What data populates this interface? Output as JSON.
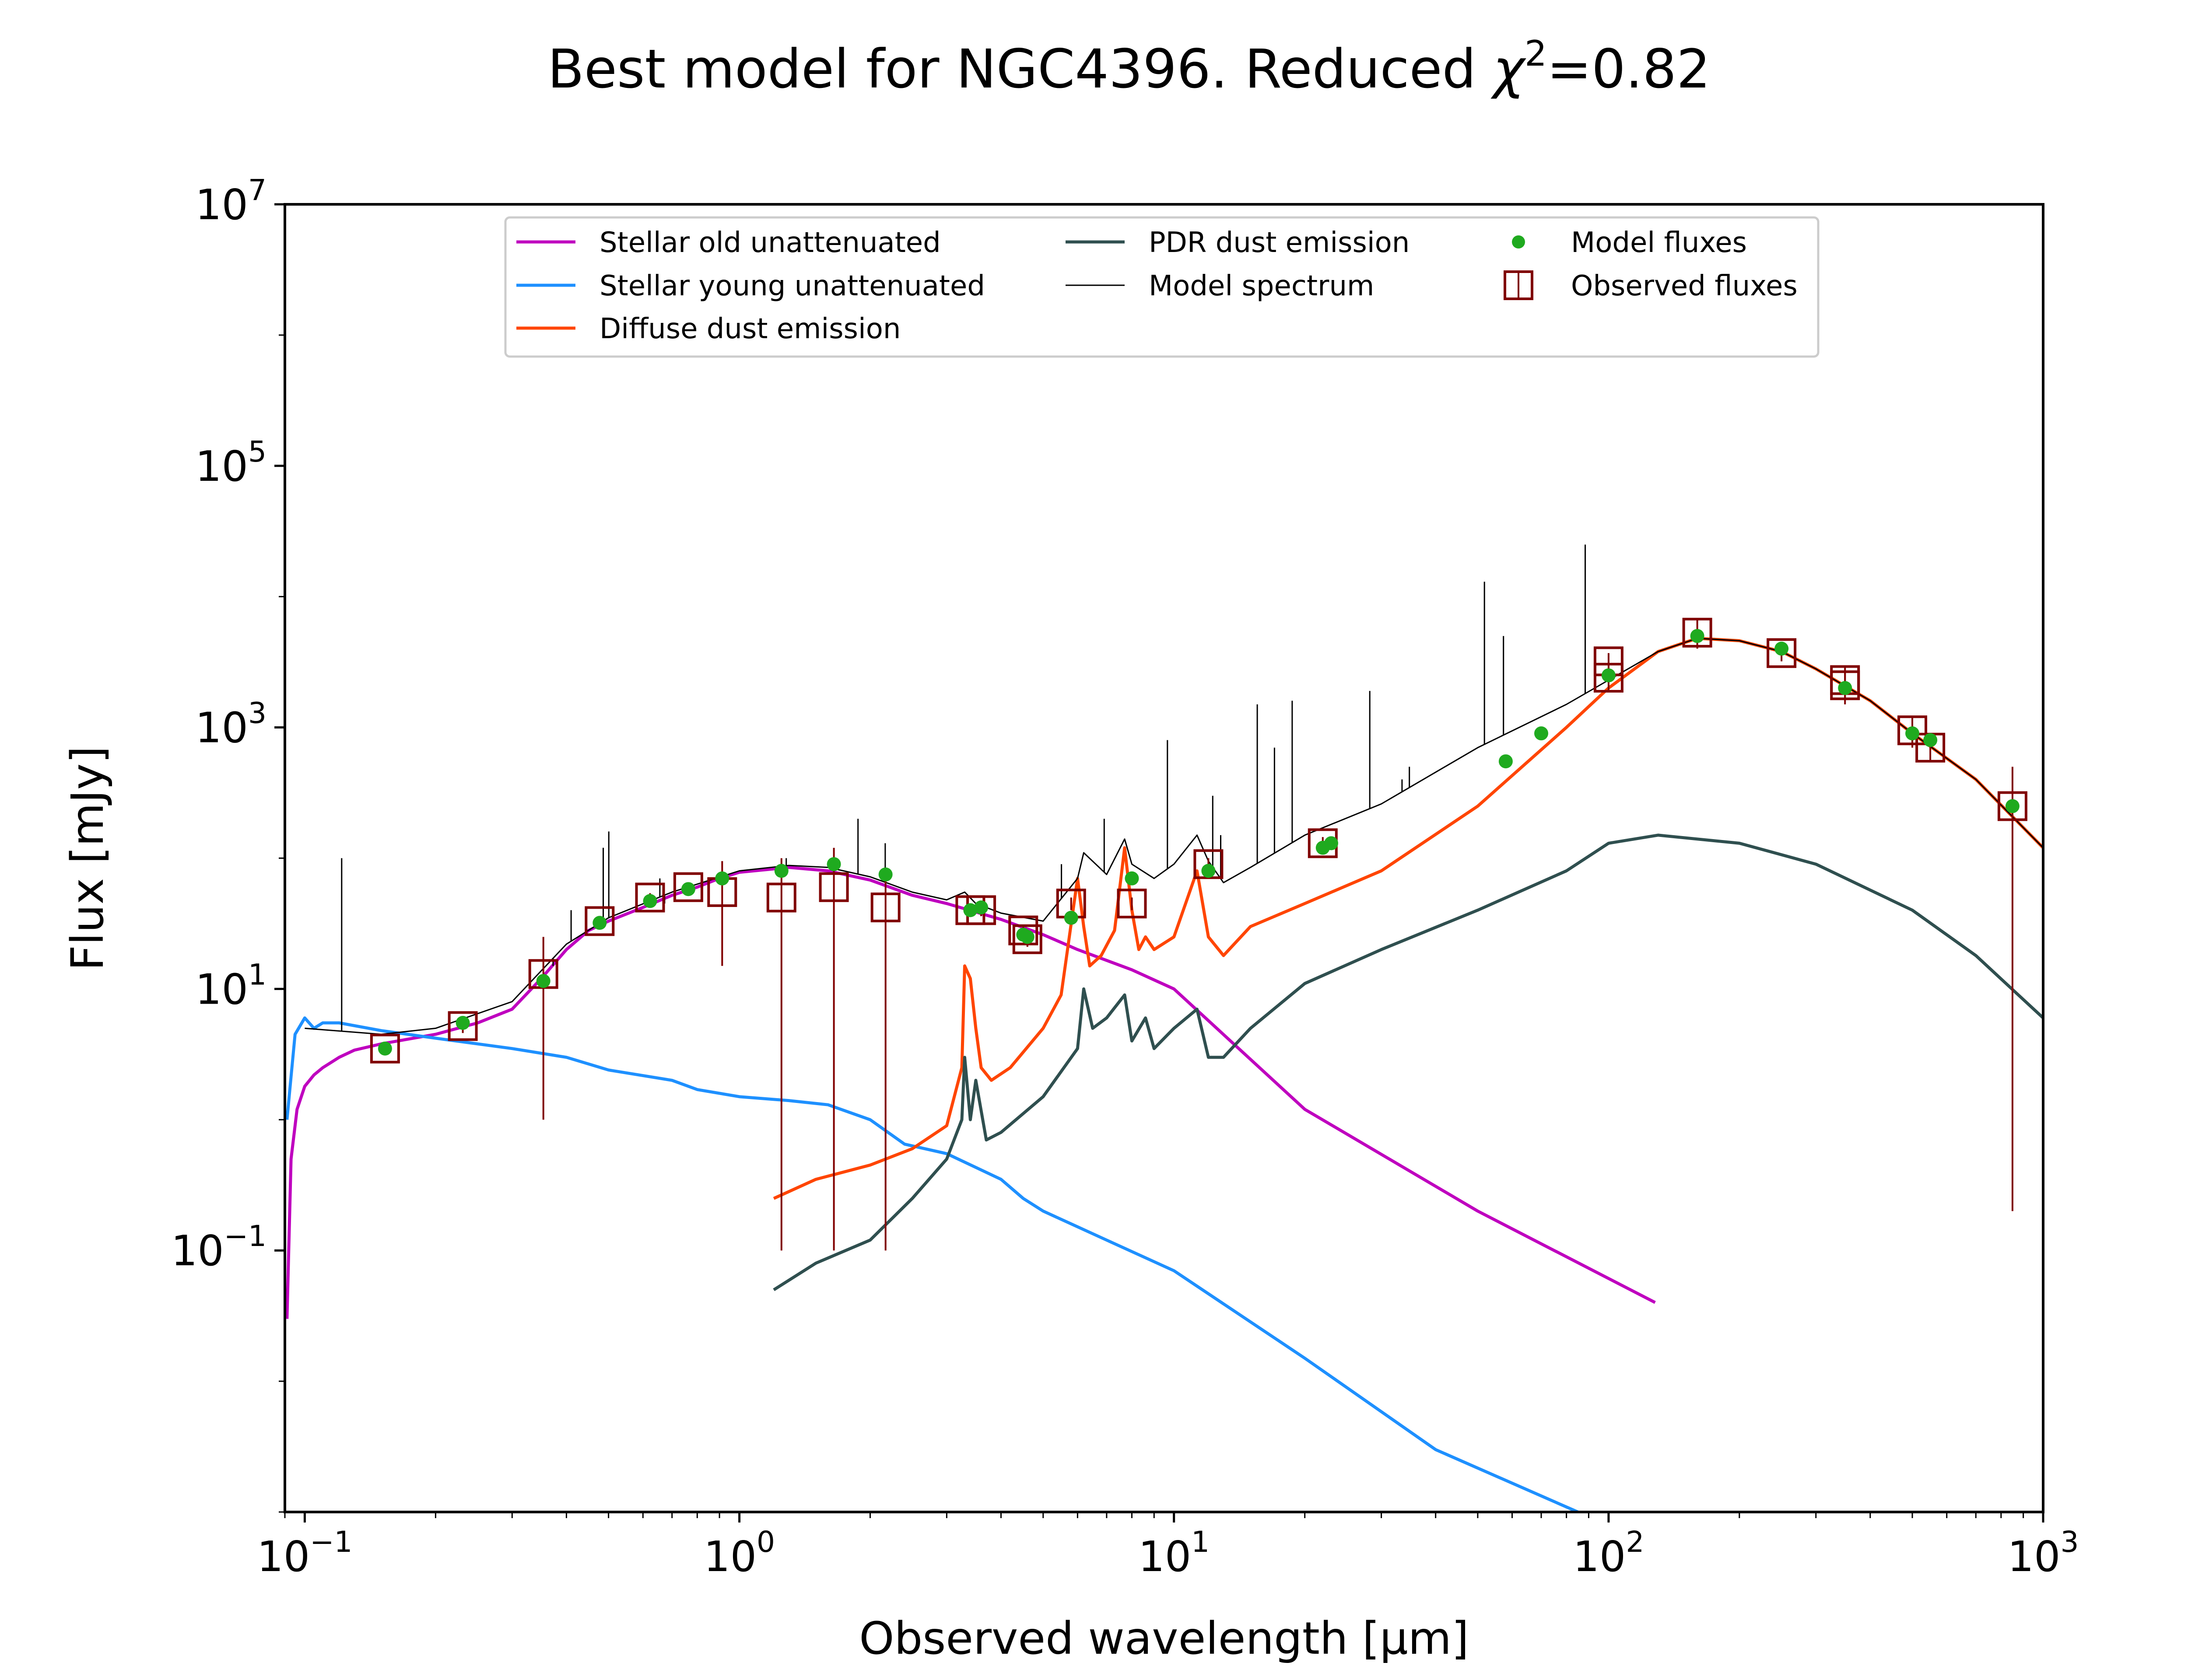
{
  "chart_data": {
    "type": "line",
    "title": "Best model for NGC4396. Reduced χ²=0.82",
    "title_parts": {
      "prefix": "Best model for NGC4396. Reduced ",
      "symbol": "χ",
      "exponent": "2",
      "suffix": "=0.82"
    },
    "xlabel": "Observed wavelength [μm]",
    "ylabel": "Flux [mJy]",
    "xscale": "log",
    "yscale": "log",
    "xlim": [
      0.09,
      1000
    ],
    "ylim": [
      0.001,
      10000000
    ],
    "grid": false,
    "legend_position": "top-center",
    "x_ticks": [
      {
        "value": 0.1,
        "base": "10",
        "exp": "−1"
      },
      {
        "value": 1,
        "base": "10",
        "exp": "0"
      },
      {
        "value": 10,
        "base": "10",
        "exp": "1"
      },
      {
        "value": 100,
        "base": "10",
        "exp": "2"
      },
      {
        "value": 1000,
        "base": "10",
        "exp": "3"
      }
    ],
    "y_ticks": [
      {
        "value": 0.1,
        "base": "10",
        "exp": "−1"
      },
      {
        "value": 10,
        "base": "10",
        "exp": "1"
      },
      {
        "value": 1000,
        "base": "10",
        "exp": "3"
      },
      {
        "value": 100000,
        "base": "10",
        "exp": "5"
      },
      {
        "value": 10000000,
        "base": "10",
        "exp": "7"
      }
    ],
    "series": [
      {
        "name": "Stellar old unattenuated",
        "kind": "line",
        "color": "#bf00bf",
        "x": [
          0.091,
          0.093,
          0.096,
          0.1,
          0.105,
          0.11,
          0.12,
          0.13,
          0.15,
          0.2,
          0.25,
          0.3,
          0.35,
          0.4,
          0.45,
          0.5,
          0.6,
          0.7,
          0.8,
          0.9,
          1.0,
          1.3,
          1.6,
          2.0,
          2.5,
          3.0,
          4.0,
          5.0,
          6.0,
          8.0,
          10,
          20,
          50,
          128
        ],
        "y": [
          0.03,
          0.5,
          1.2,
          1.8,
          2.2,
          2.5,
          3.0,
          3.4,
          3.8,
          4.5,
          5.5,
          7,
          12,
          20,
          28,
          33,
          42,
          52,
          60,
          70,
          78,
          85,
          80,
          68,
          52,
          45,
          34,
          26,
          20,
          14,
          10,
          1.2,
          0.2,
          0.04
        ]
      },
      {
        "name": "Stellar young unattenuated",
        "kind": "line",
        "color": "#1e90ff",
        "x": [
          0.091,
          0.095,
          0.1,
          0.105,
          0.11,
          0.12,
          0.15,
          0.2,
          0.3,
          0.4,
          0.5,
          0.7,
          0.8,
          1.0,
          1.3,
          1.6,
          2.0,
          2.4,
          3.0,
          4.0,
          4.5,
          5.0,
          7.0,
          10,
          20,
          40,
          85
        ],
        "y": [
          1.0,
          4.5,
          6.0,
          5.0,
          5.5,
          5.5,
          4.8,
          4.2,
          3.5,
          3.0,
          2.4,
          2.0,
          1.7,
          1.5,
          1.4,
          1.3,
          1.0,
          0.65,
          0.55,
          0.35,
          0.25,
          0.2,
          0.12,
          0.07,
          0.015,
          0.003,
          0.001
        ]
      },
      {
        "name": "Diffuse dust emission",
        "kind": "line",
        "color": "#ff4500",
        "x": [
          1.2,
          1.5,
          2.0,
          2.5,
          3.0,
          3.25,
          3.3,
          3.4,
          3.5,
          3.6,
          3.8,
          4.2,
          5,
          5.5,
          6.0,
          6.2,
          6.4,
          6.8,
          7.3,
          7.7,
          8.0,
          8.3,
          8.6,
          9.0,
          10,
          11.3,
          12,
          13,
          15,
          20,
          30,
          50,
          80,
          100,
          130,
          160,
          200,
          250,
          300,
          400,
          500,
          700,
          1000
        ],
        "y": [
          0.25,
          0.35,
          0.45,
          0.6,
          0.9,
          2.5,
          15,
          12,
          5,
          2.5,
          2.0,
          2.5,
          5,
          9,
          70,
          30,
          15,
          18,
          28,
          120,
          40,
          20,
          25,
          20,
          25,
          80,
          25,
          18,
          30,
          45,
          80,
          250,
          1000,
          2000,
          3800,
          4800,
          4600,
          3800,
          2800,
          1600,
          900,
          400,
          120
        ]
      },
      {
        "name": "PDR dust emission",
        "kind": "line",
        "color": "#2f4f4f",
        "x": [
          1.2,
          1.5,
          2.0,
          2.5,
          3.0,
          3.25,
          3.3,
          3.4,
          3.5,
          3.7,
          4.0,
          5,
          6.0,
          6.2,
          6.5,
          7.0,
          7.7,
          8.0,
          8.6,
          9.0,
          10,
          11.3,
          12,
          13,
          15,
          20,
          30,
          50,
          80,
          100,
          130,
          200,
          300,
          500,
          700,
          1000
        ],
        "y": [
          0.05,
          0.08,
          0.12,
          0.25,
          0.5,
          1.0,
          3.0,
          1.0,
          2.0,
          0.7,
          0.8,
          1.5,
          3.5,
          10,
          5,
          6,
          9,
          4,
          6,
          3.5,
          5,
          7,
          3,
          3,
          5,
          11,
          20,
          40,
          80,
          130,
          150,
          130,
          90,
          40,
          18,
          6
        ]
      },
      {
        "name": "Model spectrum",
        "kind": "line",
        "color": "#000000",
        "x": [
          0.1,
          0.15,
          0.2,
          0.3,
          0.4,
          0.5,
          0.7,
          1.0,
          1.3,
          1.6,
          2.0,
          2.5,
          3.0,
          3.3,
          3.5,
          4.0,
          5.0,
          6.0,
          6.2,
          7.0,
          7.7,
          8.0,
          9.0,
          10,
          11.3,
          12,
          13,
          15,
          20,
          30,
          50,
          80,
          100,
          130,
          160,
          200,
          250,
          300,
          400,
          500,
          700,
          1000
        ],
        "y": [
          5,
          4.5,
          5,
          8,
          22,
          35,
          55,
          80,
          88,
          85,
          72,
          55,
          48,
          55,
          45,
          38,
          33,
          70,
          110,
          75,
          140,
          90,
          70,
          90,
          150,
          95,
          65,
          85,
          150,
          260,
          700,
          1500,
          2300,
          3800,
          4800,
          4600,
          3800,
          2800,
          1600,
          900,
          400,
          120
        ]
      },
      {
        "name": "Model fluxes",
        "kind": "points",
        "color": "#1faa1f",
        "x": [
          0.153,
          0.231,
          0.354,
          0.477,
          0.623,
          0.763,
          0.913,
          1.25,
          1.65,
          2.17,
          3.4,
          3.6,
          4.5,
          4.6,
          5.8,
          8.0,
          12,
          22,
          23,
          58,
          70,
          100,
          160,
          250,
          350,
          500,
          550,
          850
        ],
        "y": [
          3.5,
          5.5,
          11.5,
          32,
          47,
          58,
          70,
          80,
          90,
          75,
          40,
          42,
          26,
          25,
          35,
          70,
          80,
          120,
          130,
          550,
          900,
          2500,
          5000,
          4000,
          2000,
          900,
          800,
          250
        ]
      },
      {
        "name": "Observed fluxes",
        "kind": "errorbar",
        "color": "#800000",
        "x": [
          0.153,
          0.231,
          0.354,
          0.477,
          0.623,
          0.763,
          0.913,
          1.25,
          1.65,
          2.17,
          3.4,
          3.6,
          4.5,
          4.6,
          5.8,
          8.0,
          12,
          22,
          100,
          100,
          160,
          250,
          350,
          350,
          500,
          550,
          850
        ],
        "y": [
          3.5,
          5.2,
          13,
          33,
          50,
          60,
          55,
          50,
          60,
          42,
          40,
          40,
          28,
          24,
          45,
          45,
          90,
          130,
          3200,
          2400,
          5300,
          3700,
          2300,
          2100,
          950,
          700,
          250
        ],
        "yerr": [
          0.4,
          0.6,
          12,
          3,
          4,
          5,
          40,
          49.9,
          59.9,
          41.9,
          4,
          4,
          3,
          3,
          5,
          5,
          10,
          15,
          500,
          500,
          1300,
          500,
          600,
          600,
          250,
          150,
          249.8
        ]
      }
    ],
    "spectral_lines": {
      "series": "Model spectrum",
      "x": [
        0.1216,
        0.3727,
        0.4101,
        0.4861,
        0.5007,
        0.6563,
        0.6731,
        1.282,
        1.875,
        2.166,
        5.51,
        6.91,
        9.66,
        12.28,
        12.81,
        15.55,
        17.03,
        18.71,
        28.22,
        33.48,
        34.81,
        51.81,
        57.3,
        88.36
      ],
      "peak_y": [
        100,
        15,
        40,
        120,
        160,
        70,
        45,
        100,
        200,
        130,
        90,
        200,
        800,
        300,
        150,
        1500,
        700,
        1600,
        1900,
        400,
        500,
        13000,
        5000,
        25000
      ]
    }
  }
}
